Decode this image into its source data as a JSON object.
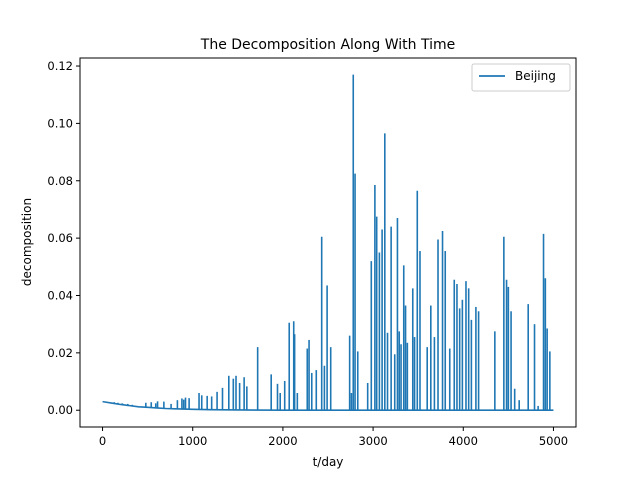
{
  "chart_data": {
    "type": "line",
    "title": "The Decomposition Along With Time",
    "xlabel": "t/day",
    "ylabel": "decomposition",
    "xlim": [
      -250,
      5250
    ],
    "ylim": [
      -0.00585,
      0.1228
    ],
    "xticks": [
      0,
      1000,
      2000,
      3000,
      4000,
      5000
    ],
    "xtick_labels": [
      "0",
      "1000",
      "2000",
      "3000",
      "4000",
      "5000"
    ],
    "yticks": [
      0.0,
      0.02,
      0.04,
      0.06,
      0.08,
      0.1,
      0.12
    ],
    "ytick_labels": [
      "0.00",
      "0.02",
      "0.04",
      "0.06",
      "0.08",
      "0.10",
      "0.12"
    ],
    "grid": false,
    "legend": {
      "position": "top-right",
      "entries": [
        "Beijing"
      ]
    },
    "series": [
      {
        "name": "Beijing",
        "color": "#1f77b4",
        "baseline": [
          [
            0,
            0.003
          ],
          [
            100,
            0.0025
          ],
          [
            200,
            0.002
          ],
          [
            300,
            0.0016
          ],
          [
            400,
            0.0012
          ],
          [
            500,
            0.001
          ],
          [
            600,
            0.0008
          ],
          [
            700,
            0.0006
          ],
          [
            800,
            0.0005
          ],
          [
            900,
            0.0004
          ],
          [
            1000,
            0.0003
          ],
          [
            1200,
            0.0002
          ],
          [
            1500,
            0.0001
          ],
          [
            2000,
            0.0
          ],
          [
            5000,
            0.0
          ]
        ],
        "spikes": [
          [
            130,
            0.0028
          ],
          [
            170,
            0.0026
          ],
          [
            220,
            0.0024
          ],
          [
            280,
            0.0022
          ],
          [
            330,
            0.0019
          ],
          [
            480,
            0.0026
          ],
          [
            540,
            0.0028
          ],
          [
            590,
            0.0024
          ],
          [
            610,
            0.0031
          ],
          [
            680,
            0.003
          ],
          [
            760,
            0.0022
          ],
          [
            830,
            0.0035
          ],
          [
            880,
            0.0041
          ],
          [
            900,
            0.0037
          ],
          [
            920,
            0.0044
          ],
          [
            960,
            0.0042
          ],
          [
            1070,
            0.006
          ],
          [
            1100,
            0.0052
          ],
          [
            1160,
            0.005
          ],
          [
            1210,
            0.0048
          ],
          [
            1270,
            0.0064
          ],
          [
            1330,
            0.0078
          ],
          [
            1400,
            0.012
          ],
          [
            1450,
            0.011
          ],
          [
            1480,
            0.012
          ],
          [
            1520,
            0.0095
          ],
          [
            1570,
            0.0115
          ],
          [
            1600,
            0.0083
          ],
          [
            1720,
            0.022
          ],
          [
            1870,
            0.0125
          ],
          [
            1940,
            0.0092
          ],
          [
            1970,
            0.006
          ],
          [
            2020,
            0.0102
          ],
          [
            2070,
            0.0305
          ],
          [
            2120,
            0.031
          ],
          [
            2130,
            0.0265
          ],
          [
            2160,
            0.006
          ],
          [
            2270,
            0.0215
          ],
          [
            2290,
            0.0245
          ],
          [
            2320,
            0.013
          ],
          [
            2370,
            0.014
          ],
          [
            2430,
            0.0605
          ],
          [
            2460,
            0.0155
          ],
          [
            2490,
            0.0435
          ],
          [
            2530,
            0.022
          ],
          [
            2740,
            0.026
          ],
          [
            2760,
            0.006
          ],
          [
            2780,
            0.117
          ],
          [
            2800,
            0.0825
          ],
          [
            2830,
            0.0205
          ],
          [
            2940,
            0.0095
          ],
          [
            2980,
            0.052
          ],
          [
            3020,
            0.0785
          ],
          [
            3040,
            0.0675
          ],
          [
            3070,
            0.055
          ],
          [
            3100,
            0.063
          ],
          [
            3130,
            0.0965
          ],
          [
            3160,
            0.027
          ],
          [
            3200,
            0.064
          ],
          [
            3240,
            0.0195
          ],
          [
            3270,
            0.067
          ],
          [
            3290,
            0.0275
          ],
          [
            3310,
            0.023
          ],
          [
            3340,
            0.0505
          ],
          [
            3360,
            0.0365
          ],
          [
            3380,
            0.0235
          ],
          [
            3440,
            0.0425
          ],
          [
            3460,
            0.0255
          ],
          [
            3490,
            0.0765
          ],
          [
            3520,
            0.0555
          ],
          [
            3600,
            0.022
          ],
          [
            3640,
            0.0365
          ],
          [
            3680,
            0.0255
          ],
          [
            3720,
            0.0595
          ],
          [
            3770,
            0.0625
          ],
          [
            3800,
            0.0555
          ],
          [
            3850,
            0.0215
          ],
          [
            3900,
            0.0455
          ],
          [
            3930,
            0.044
          ],
          [
            3960,
            0.0355
          ],
          [
            3990,
            0.0385
          ],
          [
            4030,
            0.045
          ],
          [
            4060,
            0.0425
          ],
          [
            4090,
            0.0315
          ],
          [
            4140,
            0.036
          ],
          [
            4170,
            0.0345
          ],
          [
            4350,
            0.0275
          ],
          [
            4450,
            0.0605
          ],
          [
            4480,
            0.0455
          ],
          [
            4500,
            0.043
          ],
          [
            4530,
            0.0345
          ],
          [
            4570,
            0.0075
          ],
          [
            4620,
            0.0035
          ],
          [
            4720,
            0.037
          ],
          [
            4790,
            0.03
          ],
          [
            4830,
            0.0015
          ],
          [
            4890,
            0.0615
          ],
          [
            4910,
            0.046
          ],
          [
            4930,
            0.0285
          ],
          [
            4960,
            0.0205
          ]
        ]
      }
    ]
  }
}
